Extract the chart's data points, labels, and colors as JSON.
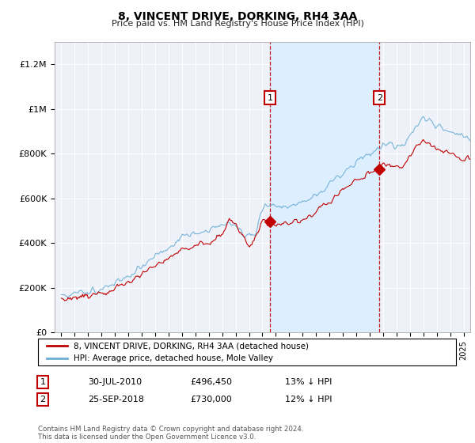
{
  "title": "8, VINCENT DRIVE, DORKING, RH4 3AA",
  "subtitle": "Price paid vs. HM Land Registry's House Price Index (HPI)",
  "ylim": [
    0,
    1300000
  ],
  "yticks": [
    0,
    200000,
    400000,
    600000,
    800000,
    1000000,
    1200000
  ],
  "ytick_labels": [
    "£0",
    "£200K",
    "£400K",
    "£600K",
    "£800K",
    "£1M",
    "£1.2M"
  ],
  "hpi_color": "#6baed6",
  "price_color": "#c00000",
  "marker1_x": 2010.58,
  "marker1_y": 496450,
  "marker1_label": "1",
  "marker2_x": 2018.73,
  "marker2_y": 730000,
  "marker2_label": "2",
  "shade_color": "#ddeeff",
  "shade_start": 2010.58,
  "shade_end": 2018.73,
  "legend_line1": "8, VINCENT DRIVE, DORKING, RH4 3AA (detached house)",
  "legend_line2": "HPI: Average price, detached house, Mole Valley",
  "annotation1_date": "30-JUL-2010",
  "annotation1_price": "£496,450",
  "annotation1_hpi": "13% ↓ HPI",
  "annotation2_date": "25-SEP-2018",
  "annotation2_price": "£730,000",
  "annotation2_hpi": "12% ↓ HPI",
  "footer": "Contains HM Land Registry data © Crown copyright and database right 2024.\nThis data is licensed under the Open Government Licence v3.0.",
  "xmin": 1994.5,
  "xmax": 2025.5,
  "background_color": "#ffffff",
  "plot_bg": "#eef2f8"
}
